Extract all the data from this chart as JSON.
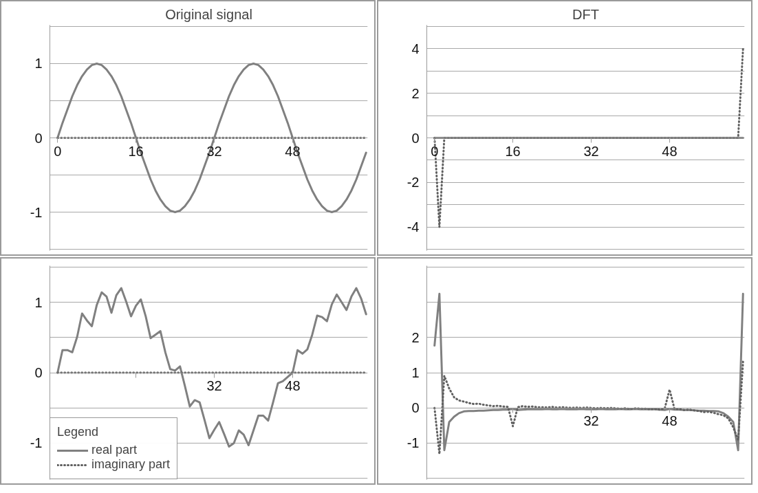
{
  "chart_data": [
    {
      "type": "line",
      "title": "Original signal",
      "x": [
        0,
        1,
        2,
        3,
        4,
        5,
        6,
        7,
        8,
        9,
        10,
        11,
        12,
        13,
        14,
        15,
        16,
        17,
        18,
        19,
        20,
        21,
        22,
        23,
        24,
        25,
        26,
        27,
        28,
        29,
        30,
        31,
        32,
        33,
        34,
        35,
        36,
        37,
        38,
        39,
        40,
        41,
        42,
        43,
        44,
        45,
        46,
        47,
        48,
        49,
        50,
        51,
        52,
        53,
        54,
        55,
        56,
        57,
        58,
        59,
        60,
        61,
        62,
        63
      ],
      "xlim": [
        0,
        63
      ],
      "xticks": [
        0,
        16,
        32,
        48
      ],
      "ylim": [
        -1.5,
        1.5
      ],
      "yticks": [
        {
          "value": -1.5,
          "label": null
        },
        -1,
        {
          "value": -0.5,
          "label": null
        },
        0,
        {
          "value": 0.5,
          "label": null
        },
        1,
        {
          "value": 1.5,
          "label": null
        }
      ],
      "grid": "y",
      "series": [
        {
          "color": "#808080",
          "line_style": "solid",
          "values": [
            0,
            0.2,
            0.38,
            0.56,
            0.71,
            0.83,
            0.92,
            0.98,
            1,
            0.98,
            0.92,
            0.83,
            0.71,
            0.56,
            0.38,
            0.2,
            0,
            -0.2,
            -0.38,
            -0.56,
            -0.71,
            -0.83,
            -0.92,
            -0.98,
            -1,
            -0.98,
            -0.92,
            -0.83,
            -0.71,
            -0.56,
            -0.38,
            -0.2,
            0,
            0.2,
            0.38,
            0.56,
            0.71,
            0.83,
            0.92,
            0.98,
            1,
            0.98,
            0.92,
            0.83,
            0.71,
            0.56,
            0.38,
            0.2,
            0,
            -0.2,
            -0.38,
            -0.56,
            -0.71,
            -0.83,
            -0.92,
            -0.98,
            -1,
            -0.98,
            -0.92,
            -0.83,
            -0.71,
            -0.56,
            -0.38,
            -0.2
          ]
        },
        {
          "color": "#606060",
          "line_style": "dotted",
          "values": [
            0,
            0,
            0,
            0,
            0,
            0,
            0,
            0,
            0,
            0,
            0,
            0,
            0,
            0,
            0,
            0,
            0,
            0,
            0,
            0,
            0,
            0,
            0,
            0,
            0,
            0,
            0,
            0,
            0,
            0,
            0,
            0,
            0,
            0,
            0,
            0,
            0,
            0,
            0,
            0,
            0,
            0,
            0,
            0,
            0,
            0,
            0,
            0,
            0,
            0,
            0,
            0,
            0,
            0,
            0,
            0,
            0,
            0,
            0,
            0,
            0,
            0,
            0,
            0
          ]
        }
      ]
    },
    {
      "type": "line",
      "title": "DFT",
      "x": [
        0,
        1,
        2,
        3,
        4,
        5,
        6,
        7,
        8,
        9,
        10,
        11,
        12,
        13,
        14,
        15,
        16,
        17,
        18,
        19,
        20,
        21,
        22,
        23,
        24,
        25,
        26,
        27,
        28,
        29,
        30,
        31,
        32,
        33,
        34,
        35,
        36,
        37,
        38,
        39,
        40,
        41,
        42,
        43,
        44,
        45,
        46,
        47,
        48,
        49,
        50,
        51,
        52,
        53,
        54,
        55,
        56,
        57,
        58,
        59,
        60,
        61,
        62,
        63
      ],
      "xlim": [
        0,
        63
      ],
      "xticks": [
        0,
        16,
        32,
        48
      ],
      "ylim": [
        -5,
        5
      ],
      "yticks": [
        {
          "value": -5,
          "label": null
        },
        -4,
        {
          "value": -3,
          "label": null
        },
        -2,
        {
          "value": -1,
          "label": null
        },
        0,
        {
          "value": 1,
          "label": null
        },
        2,
        {
          "value": 3,
          "label": null
        },
        4,
        {
          "value": 5,
          "label": null
        }
      ],
      "grid": "y",
      "series": [
        {
          "color": "#808080",
          "line_style": "solid",
          "values": [
            0,
            0,
            0,
            0,
            0,
            0,
            0,
            0,
            0,
            0,
            0,
            0,
            0,
            0,
            0,
            0,
            0,
            0,
            0,
            0,
            0,
            0,
            0,
            0,
            0,
            0,
            0,
            0,
            0,
            0,
            0,
            0,
            0,
            0,
            0,
            0,
            0,
            0,
            0,
            0,
            0,
            0,
            0,
            0,
            0,
            0,
            0,
            0,
            0,
            0,
            0,
            0,
            0,
            0,
            0,
            0,
            0,
            0,
            0,
            0,
            0,
            0,
            0,
            0
          ]
        },
        {
          "color": "#606060",
          "line_style": "dotted",
          "values": [
            0,
            -4,
            0,
            0,
            0,
            0,
            0,
            0,
            0,
            0,
            0,
            0,
            0,
            0,
            0,
            0,
            0,
            0,
            0,
            0,
            0,
            0,
            0,
            0,
            0,
            0,
            0,
            0,
            0,
            0,
            0,
            0,
            0,
            0,
            0,
            0,
            0,
            0,
            0,
            0,
            0,
            0,
            0,
            0,
            0,
            0,
            0,
            0,
            0,
            0,
            0,
            0,
            0,
            0,
            0,
            0,
            0,
            0,
            0,
            0,
            0,
            0,
            0,
            4
          ]
        }
      ]
    },
    {
      "type": "line",
      "x": [
        0,
        1,
        2,
        3,
        4,
        5,
        6,
        7,
        8,
        9,
        10,
        11,
        12,
        13,
        14,
        15,
        16,
        17,
        18,
        19,
        20,
        21,
        22,
        23,
        24,
        25,
        26,
        27,
        28,
        29,
        30,
        31,
        32,
        33,
        34,
        35,
        36,
        37,
        38,
        39,
        40,
        41,
        42,
        43,
        44,
        45,
        46,
        47,
        48,
        49,
        50,
        51,
        52,
        53,
        54,
        55,
        56,
        57,
        58,
        59,
        60,
        61,
        62,
        63
      ],
      "xlim": [
        0,
        63
      ],
      "xticks": [
        {
          "value": 16,
          "label": null
        },
        32,
        48
      ],
      "ylim": [
        -1.5,
        1.5
      ],
      "yticks": [
        {
          "value": -1.5,
          "label": null
        },
        -1,
        {
          "value": -0.5,
          "label": null
        },
        0,
        {
          "value": 0.5,
          "label": null
        },
        1,
        {
          "value": 1.5,
          "label": null
        }
      ],
      "grid": "y",
      "legend": "bottom left",
      "legend_title": "Legend",
      "series": [
        {
          "name": "real part",
          "color": "#808080",
          "line_style": "solid",
          "values": [
            0,
            0.32,
            0.32,
            0.29,
            0.51,
            0.84,
            0.74,
            0.66,
            0.96,
            1.14,
            1.08,
            0.85,
            1.1,
            1.2,
            1.01,
            0.8,
            0.95,
            1.04,
            0.8,
            0.49,
            0.54,
            0.59,
            0.29,
            0.05,
            0.03,
            0.09,
            -0.19,
            -0.48,
            -0.39,
            -0.42,
            -0.67,
            -0.93,
            -0.81,
            -0.7,
            -0.87,
            -1.05,
            -1,
            -0.82,
            -0.88,
            -1.03,
            -0.82,
            -0.61,
            -0.61,
            -0.68,
            -0.42,
            -0.15,
            -0.12,
            -0.06,
            0,
            0.32,
            0.27,
            0.33,
            0.54,
            0.81,
            0.79,
            0.73,
            0.97,
            1.11,
            1,
            0.89,
            1.08,
            1.2,
            1.05,
            0.83
          ]
        },
        {
          "name": "imaginary part",
          "color": "#606060",
          "line_style": "dotted",
          "values": [
            0,
            0,
            0,
            0,
            0,
            0,
            0,
            0,
            0,
            0,
            0,
            0,
            0,
            0,
            0,
            0,
            0,
            0,
            0,
            0,
            0,
            0,
            0,
            0,
            0,
            0,
            0,
            0,
            0,
            0,
            0,
            0,
            0,
            0,
            0,
            0,
            0,
            0,
            0,
            0,
            0,
            0,
            0,
            0,
            0,
            0,
            0,
            0,
            0,
            0,
            0,
            0,
            0,
            0,
            0,
            0,
            0,
            0,
            0,
            0,
            0,
            0,
            0,
            0
          ]
        }
      ]
    },
    {
      "type": "line",
      "x": [
        0,
        1,
        2,
        3,
        4,
        5,
        6,
        7,
        8,
        9,
        10,
        11,
        12,
        13,
        14,
        15,
        16,
        17,
        18,
        19,
        20,
        21,
        22,
        23,
        24,
        25,
        26,
        27,
        28,
        29,
        30,
        31,
        32,
        33,
        34,
        35,
        36,
        37,
        38,
        39,
        40,
        41,
        42,
        43,
        44,
        45,
        46,
        47,
        48,
        49,
        50,
        51,
        52,
        53,
        54,
        55,
        56,
        57,
        58,
        59,
        60,
        61,
        62,
        63
      ],
      "xlim": [
        0,
        63
      ],
      "xticks": [
        {
          "value": 16,
          "label": null
        },
        32,
        48
      ],
      "ylim": [
        -2,
        4
      ],
      "yticks": [
        {
          "value": -2,
          "label": null
        },
        -1,
        0,
        1,
        2,
        {
          "value": 3,
          "label": null
        },
        {
          "value": 4,
          "label": null
        }
      ],
      "grid": "y",
      "series": [
        {
          "color": "#808080",
          "line_style": "solid",
          "values": [
            1.77,
            3.24,
            -1.2,
            -0.4,
            -0.25,
            -0.15,
            -0.1,
            -0.09,
            -0.09,
            -0.08,
            -0.08,
            -0.07,
            -0.06,
            -0.06,
            -0.05,
            -0.05,
            -0.03,
            -0.06,
            -0.05,
            -0.04,
            -0.04,
            -0.04,
            -0.04,
            -0.03,
            -0.04,
            -0.04,
            -0.03,
            -0.04,
            -0.04,
            -0.04,
            -0.03,
            -0.04,
            -0.04,
            -0.04,
            -0.03,
            -0.04,
            -0.04,
            -0.04,
            -0.03,
            -0.04,
            -0.04,
            -0.03,
            -0.04,
            -0.04,
            -0.04,
            -0.04,
            -0.05,
            -0.06,
            -0.03,
            -0.05,
            -0.05,
            -0.06,
            -0.06,
            -0.07,
            -0.08,
            -0.08,
            -0.09,
            -0.09,
            -0.1,
            -0.15,
            -0.25,
            -0.4,
            -1.2,
            3.24
          ]
        },
        {
          "color": "#606060",
          "line_style": "dotted",
          "values": [
            0,
            -1.31,
            0.91,
            0.55,
            0.3,
            0.21,
            0.18,
            0.14,
            0.11,
            0.12,
            0.09,
            0.07,
            0.05,
            0.06,
            0.04,
            0.03,
            -0.52,
            0.02,
            0.05,
            0.03,
            0.04,
            0.02,
            0.02,
            0.01,
            0.03,
            0.01,
            0.02,
            0.01,
            0,
            0.01,
            0,
            0.01,
            0,
            -0.01,
            0,
            -0.01,
            0,
            -0.01,
            -0.02,
            -0.01,
            -0.03,
            -0.01,
            -0.02,
            -0.02,
            -0.04,
            -0.03,
            -0.05,
            -0.02,
            0.52,
            -0.03,
            -0.04,
            -0.06,
            -0.05,
            -0.07,
            -0.09,
            -0.12,
            -0.11,
            -0.14,
            -0.18,
            -0.21,
            -0.3,
            -0.55,
            -0.91,
            1.31
          ]
        }
      ]
    }
  ]
}
